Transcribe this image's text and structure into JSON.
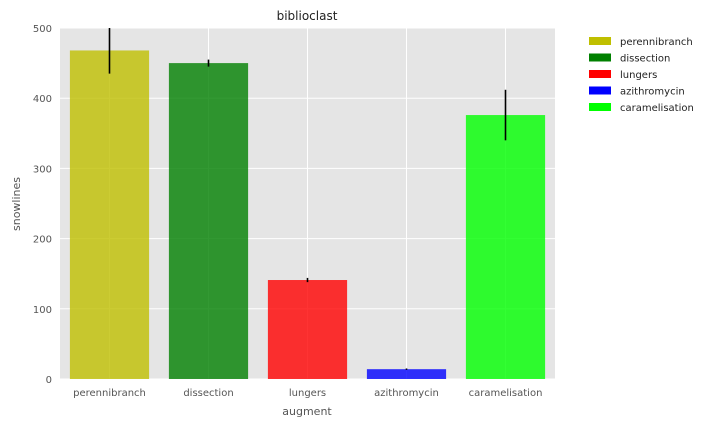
{
  "chart_data": {
    "type": "bar",
    "title": "biblioclast",
    "xlabel": "augment",
    "ylabel": "snowlines",
    "categories": [
      "perennibranch",
      "dissection",
      "lungers",
      "azithromycin",
      "caramelisation"
    ],
    "values": [
      468,
      450,
      141,
      14,
      376
    ],
    "errors": [
      33,
      5,
      3,
      1,
      36
    ],
    "colors": [
      "#bfbf00",
      "#008000",
      "#ff0000",
      "#0000ff",
      "#00ff00"
    ],
    "ylim": [
      0,
      500
    ],
    "yticks": [
      0,
      100,
      200,
      300,
      400,
      500
    ],
    "grid": true,
    "legend_position": "outside-top-right",
    "legend": [
      "perennibranch",
      "dissection",
      "lungers",
      "azithromycin",
      "caramelisation"
    ]
  }
}
